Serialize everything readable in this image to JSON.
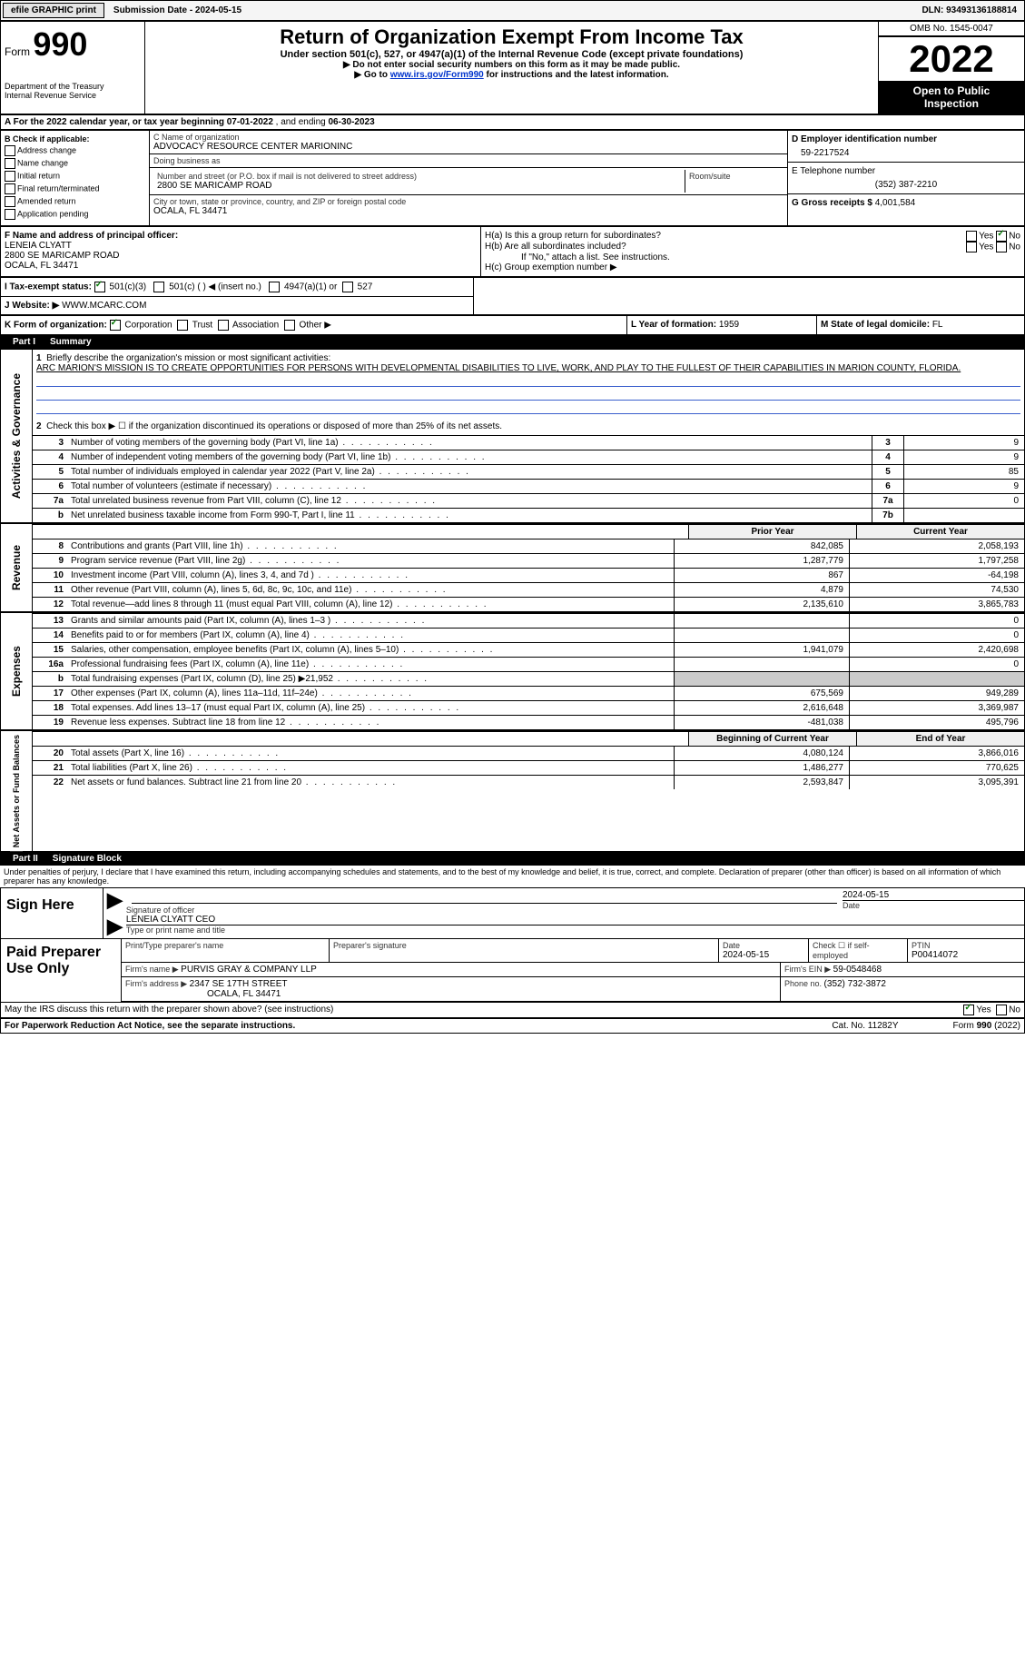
{
  "topbar": {
    "efile_btn": "efile GRAPHIC print",
    "sub_date_label": "Submission Date - ",
    "sub_date": "2024-05-15",
    "dln_label": "DLN: ",
    "dln": "93493136188814"
  },
  "header": {
    "form_word": "Form",
    "form_num": "990",
    "dept": "Department of the Treasury",
    "irs": "Internal Revenue Service",
    "title": "Return of Organization Exempt From Income Tax",
    "subtitle": "Under section 501(c), 527, or 4947(a)(1) of the Internal Revenue Code (except private foundations)",
    "note1_pre": "▶ Do not enter social security numbers on this form as it may be made public.",
    "note2_pre": "▶ Go to ",
    "note2_link": "www.irs.gov/Form990",
    "note2_post": " for instructions and the latest information.",
    "omb": "OMB No. 1545-0047",
    "year": "2022",
    "open1": "Open to Public",
    "open2": "Inspection"
  },
  "lineA": {
    "pre": "A For the 2022 calendar year, or tax year beginning ",
    "begin": "07-01-2022",
    "mid": "   , and ending ",
    "end": "06-30-2023"
  },
  "B": {
    "title": "B Check if applicable:",
    "opts": [
      "Address change",
      "Name change",
      "Initial return",
      "Final return/terminated",
      "Amended return",
      "Application pending"
    ]
  },
  "C": {
    "name_label": "C Name of organization",
    "name": "ADVOCACY RESOURCE CENTER MARIONINC",
    "dba_label": "Doing business as",
    "dba": "",
    "addr_label": "Number and street (or P.O. box if mail is not delivered to street address)",
    "room_label": "Room/suite",
    "addr": "2800 SE MARICAMP ROAD",
    "city_label": "City or town, state or province, country, and ZIP or foreign postal code",
    "city": "OCALA, FL  34471"
  },
  "D": {
    "label": "D Employer identification number",
    "val": "59-2217524"
  },
  "E": {
    "label": "E Telephone number",
    "val": "(352) 387-2210"
  },
  "G": {
    "label": "G Gross receipts $ ",
    "val": "4,001,584"
  },
  "F": {
    "label": "F  Name and address of principal officer:",
    "name": "LENEIA CLYATT",
    "addr1": "2800 SE MARICAMP ROAD",
    "addr2": "OCALA, FL  34471"
  },
  "H": {
    "a": "H(a)  Is this a group return for subordinates?",
    "b": "H(b)  Are all subordinates included?",
    "bnote": "If \"No,\" attach a list. See instructions.",
    "c": "H(c)  Group exemption number ▶",
    "yes": "Yes",
    "no": "No"
  },
  "I": {
    "label": "I    Tax-exempt status:",
    "o1": "501(c)(3)",
    "o2": "501(c) (    ) ◀ (insert no.)",
    "o3": "4947(a)(1) or",
    "o4": "527"
  },
  "J": {
    "label": "J   Website: ▶",
    "val": "WWW.MCARC.COM"
  },
  "K": {
    "label": "K Form of organization:",
    "o1": "Corporation",
    "o2": "Trust",
    "o3": "Association",
    "o4": "Other ▶"
  },
  "L": {
    "label": "L Year of formation: ",
    "val": "1959"
  },
  "M": {
    "label": "M State of legal domicile: ",
    "val": "FL"
  },
  "parts": {
    "p1": "Part I",
    "p1t": "Summary",
    "p2": "Part II",
    "p2t": "Signature Block"
  },
  "summary": {
    "vlabels": {
      "ag": "Activities & Governance",
      "rev": "Revenue",
      "exp": "Expenses",
      "nafb": "Net Assets or Fund Balances"
    },
    "l1_label": "Briefly describe the organization's mission or most significant activities:",
    "l1_text": "ARC MARION'S MISSION IS TO CREATE OPPORTUNITIES FOR PERSONS WITH DEVELOPMENTAL DISABILITIES TO LIVE, WORK, AND PLAY TO THE FULLEST OF THEIR CAPABILITIES IN MARION COUNTY, FLORIDA.",
    "l2": "Check this box ▶ ☐  if the organization discontinued its operations or disposed of more than 25% of its net assets.",
    "rows_ag": [
      {
        "n": "3",
        "d": "Number of voting members of the governing body (Part VI, line 1a)",
        "b": "3",
        "v": "9"
      },
      {
        "n": "4",
        "d": "Number of independent voting members of the governing body (Part VI, line 1b)",
        "b": "4",
        "v": "9"
      },
      {
        "n": "5",
        "d": "Total number of individuals employed in calendar year 2022 (Part V, line 2a)",
        "b": "5",
        "v": "85"
      },
      {
        "n": "6",
        "d": "Total number of volunteers (estimate if necessary)",
        "b": "6",
        "v": "9"
      },
      {
        "n": "7a",
        "d": "Total unrelated business revenue from Part VIII, column (C), line 12",
        "b": "7a",
        "v": "0"
      },
      {
        "n": "b",
        "d": "Net unrelated business taxable income from Form 990-T, Part I, line 11",
        "b": "7b",
        "v": ""
      }
    ],
    "head_prior": "Prior Year",
    "head_current": "Current Year",
    "rows_rev": [
      {
        "n": "8",
        "d": "Contributions and grants (Part VIII, line 1h)",
        "v1": "842,085",
        "v2": "2,058,193"
      },
      {
        "n": "9",
        "d": "Program service revenue (Part VIII, line 2g)",
        "v1": "1,287,779",
        "v2": "1,797,258"
      },
      {
        "n": "10",
        "d": "Investment income (Part VIII, column (A), lines 3, 4, and 7d )",
        "v1": "867",
        "v2": "-64,198"
      },
      {
        "n": "11",
        "d": "Other revenue (Part VIII, column (A), lines 5, 6d, 8c, 9c, 10c, and 11e)",
        "v1": "4,879",
        "v2": "74,530"
      },
      {
        "n": "12",
        "d": "Total revenue—add lines 8 through 11 (must equal Part VIII, column (A), line 12)",
        "v1": "2,135,610",
        "v2": "3,865,783"
      }
    ],
    "rows_exp": [
      {
        "n": "13",
        "d": "Grants and similar amounts paid (Part IX, column (A), lines 1–3 )",
        "v1": "",
        "v2": "0"
      },
      {
        "n": "14",
        "d": "Benefits paid to or for members (Part IX, column (A), line 4)",
        "v1": "",
        "v2": "0"
      },
      {
        "n": "15",
        "d": "Salaries, other compensation, employee benefits (Part IX, column (A), lines 5–10)",
        "v1": "1,941,079",
        "v2": "2,420,698"
      },
      {
        "n": "16a",
        "d": "Professional fundraising fees (Part IX, column (A), line 11e)",
        "v1": "",
        "v2": "0"
      },
      {
        "n": "b",
        "d": "Total fundraising expenses (Part IX, column (D), line 25) ▶21,952",
        "v1": "SHADE",
        "v2": "SHADE"
      },
      {
        "n": "17",
        "d": "Other expenses (Part IX, column (A), lines 11a–11d, 11f–24e)",
        "v1": "675,569",
        "v2": "949,289"
      },
      {
        "n": "18",
        "d": "Total expenses. Add lines 13–17 (must equal Part IX, column (A), line 25)",
        "v1": "2,616,648",
        "v2": "3,369,987"
      },
      {
        "n": "19",
        "d": "Revenue less expenses. Subtract line 18 from line 12",
        "v1": "-481,038",
        "v2": "495,796"
      }
    ],
    "head_boy": "Beginning of Current Year",
    "head_eoy": "End of Year",
    "rows_na": [
      {
        "n": "20",
        "d": "Total assets (Part X, line 16)",
        "v1": "4,080,124",
        "v2": "3,866,016"
      },
      {
        "n": "21",
        "d": "Total liabilities (Part X, line 26)",
        "v1": "1,486,277",
        "v2": "770,625"
      },
      {
        "n": "22",
        "d": "Net assets or fund balances. Subtract line 21 from line 20",
        "v1": "2,593,847",
        "v2": "3,095,391"
      }
    ]
  },
  "sig": {
    "decl": "Under penalties of perjury, I declare that I have examined this return, including accompanying schedules and statements, and to the best of my knowledge and belief, it is true, correct, and complete. Declaration of preparer (other than officer) is based on all information of which preparer has any knowledge.",
    "sign_here": "Sign Here",
    "sig_officer": "Signature of officer",
    "date_label": "Date",
    "date_val": "2024-05-15",
    "name_title": "LENEIA CLYATT CEO",
    "name_title_label": "Type or print name and title",
    "paid_prep": "Paid Preparer Use Only",
    "pt_name_label": "Print/Type preparer's name",
    "pt_name": "",
    "prep_sig_label": "Preparer's signature",
    "prep_date_label": "Date",
    "prep_date": "2024-05-15",
    "check_if": "Check ☐ if self-employed",
    "ptin_label": "PTIN",
    "ptin": "P00414072",
    "firm_name_label": "Firm's name      ▶ ",
    "firm_name": "PURVIS GRAY & COMPANY LLP",
    "firm_ein_label": "Firm's EIN ▶ ",
    "firm_ein": "59-0548468",
    "firm_addr_label": "Firm's address ▶ ",
    "firm_addr1": "2347 SE 17TH STREET",
    "firm_addr2": "OCALA, FL  34471",
    "phone_label": "Phone no. ",
    "phone": "(352) 732-3872",
    "may_irs": "May the IRS discuss this return with the preparer shown above? (see instructions)",
    "yes": "Yes",
    "no": "No"
  },
  "footer": {
    "pra": "For Paperwork Reduction Act Notice, see the separate instructions.",
    "cat": "Cat. No. 11282Y",
    "form": "Form 990 (2022)"
  }
}
